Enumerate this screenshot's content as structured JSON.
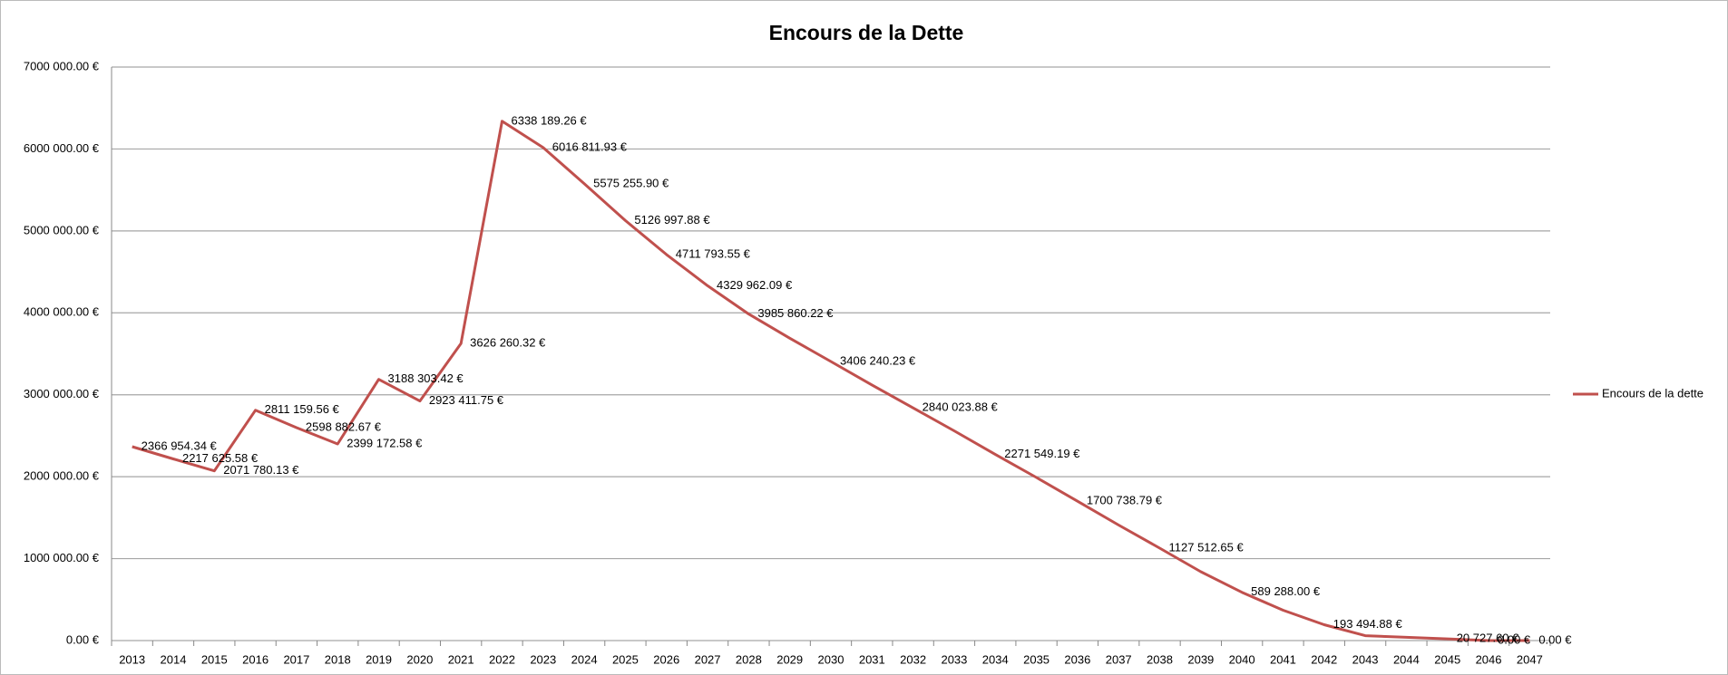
{
  "chart_data": {
    "type": "line",
    "title": "Encours de la Dette",
    "categories": [
      "2013",
      "2014",
      "2015",
      "2016",
      "2017",
      "2018",
      "2019",
      "2020",
      "2021",
      "2022",
      "2023",
      "2024",
      "2025",
      "2026",
      "2027",
      "2028",
      "2029",
      "2030",
      "2031",
      "2032",
      "2033",
      "2034",
      "2035",
      "2036",
      "2037",
      "2038",
      "2039",
      "2040",
      "2041",
      "2042",
      "2043",
      "2044",
      "2045",
      "2046",
      "2047"
    ],
    "series": [
      {
        "name": "Encours de la dette",
        "color": "#c0504d",
        "values": [
          2366954.34,
          2217625.58,
          2071780.13,
          2811159.56,
          2598882.67,
          2399172.58,
          3188303.42,
          2923411.75,
          3626260.32,
          6338189.26,
          6016811.93,
          5575255.9,
          5126997.88,
          4711793.55,
          4329962.09,
          3985860.22,
          3690000,
          3406240.23,
          3120000,
          2840023.88,
          2560000,
          2271549.19,
          1990000,
          1700738.79,
          1410000,
          1127512.65,
          840000,
          589288.0,
          370000,
          193494.88,
          60000,
          40000,
          20727.6,
          0,
          0
        ],
        "value_labels": [
          "2366 954.34 €",
          "2217 625.58 €",
          "2071 780.13 €",
          "2811 159.56 €",
          "2598 882.67 €",
          "2399 172.58 €",
          "3188 303.42 €",
          "2923 411.75 €",
          "3626 260.32 €",
          "6338 189.26 €",
          "6016 811.93 €",
          "5575 255.90 €",
          "5126 997.88 €",
          "4711 793.55 €",
          "4329 962.09 €",
          "3985 860.22 €",
          null,
          "3406 240.23 €",
          null,
          "2840 023.88 €",
          null,
          "2271 549.19 €",
          null,
          "1700 738.79 €",
          null,
          "1127 512.65 €",
          null,
          "589 288.00 €",
          null,
          "193 494.88 €",
          null,
          null,
          "20 727.60 €",
          "0.00 €",
          "0.00 €"
        ]
      }
    ],
    "ylim": [
      0,
      7000000
    ],
    "yticks": [
      {
        "value": 0,
        "label": "0.00 €"
      },
      {
        "value": 1000000,
        "label": "1000 000.00 €"
      },
      {
        "value": 2000000,
        "label": "2000 000.00 €"
      },
      {
        "value": 3000000,
        "label": "3000 000.00 €"
      },
      {
        "value": 4000000,
        "label": "4000 000.00 €"
      },
      {
        "value": 5000000,
        "label": "5000 000.00 €"
      },
      {
        "value": 6000000,
        "label": "6000 000.00 €"
      },
      {
        "value": 7000000,
        "label": "7000 000.00 €"
      }
    ],
    "grid": true,
    "legend": "right"
  }
}
